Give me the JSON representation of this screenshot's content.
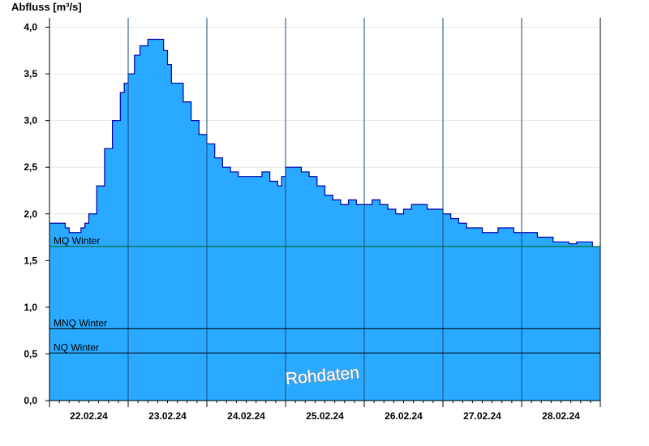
{
  "chart_data": {
    "type": "area",
    "ylabel": "Abfluss [m³/s]",
    "ylim": [
      0,
      4.1
    ],
    "yticks": [
      0.0,
      0.5,
      1.0,
      1.5,
      2.0,
      2.5,
      3.0,
      3.5,
      4.0
    ],
    "ytick_labels": [
      "0,0",
      "0,5",
      "1,0",
      "1,5",
      "2,0",
      "2,5",
      "3,0",
      "3,5",
      "4,0"
    ],
    "xlim": [
      0,
      7
    ],
    "x_unit": "days from 22.02.24 00:00",
    "x_labels": [
      "22.02.24",
      "23.02.24",
      "24.02.24",
      "25.02.24",
      "26.02.24",
      "27.02.24",
      "28.02.24"
    ],
    "grid": true,
    "fill_color": "#29a9ff",
    "line_color": "#0000aa",
    "series": [
      {
        "name": "Abfluss",
        "x": [
          0.0,
          0.1,
          0.2,
          0.25,
          0.4,
          0.45,
          0.5,
          0.6,
          0.7,
          0.8,
          0.9,
          0.95,
          1.0,
          1.08,
          1.15,
          1.25,
          1.35,
          1.45,
          1.5,
          1.55,
          1.7,
          1.8,
          1.9,
          2.0,
          2.1,
          2.2,
          2.3,
          2.4,
          2.5,
          2.6,
          2.7,
          2.8,
          2.9,
          2.95,
          3.0,
          3.1,
          3.2,
          3.3,
          3.4,
          3.5,
          3.6,
          3.7,
          3.8,
          3.9,
          4.0,
          4.1,
          4.2,
          4.3,
          4.4,
          4.5,
          4.6,
          4.7,
          4.8,
          4.9,
          5.0,
          5.1,
          5.2,
          5.3,
          5.4,
          5.5,
          5.6,
          5.7,
          5.8,
          5.9,
          6.0,
          6.1,
          6.2,
          6.3,
          6.4,
          6.5,
          6.6,
          6.7,
          6.8,
          6.9,
          7.0
        ],
        "y": [
          1.9,
          1.9,
          1.85,
          1.8,
          1.85,
          1.9,
          2.0,
          2.3,
          2.7,
          3.0,
          3.3,
          3.4,
          3.5,
          3.7,
          3.8,
          3.87,
          3.87,
          3.75,
          3.6,
          3.4,
          3.2,
          3.0,
          2.85,
          2.75,
          2.6,
          2.5,
          2.45,
          2.4,
          2.4,
          2.4,
          2.45,
          2.35,
          2.3,
          2.4,
          2.5,
          2.5,
          2.45,
          2.4,
          2.3,
          2.2,
          2.15,
          2.1,
          2.15,
          2.1,
          2.1,
          2.15,
          2.1,
          2.05,
          2.0,
          2.05,
          2.1,
          2.1,
          2.05,
          2.05,
          2.0,
          1.95,
          1.9,
          1.85,
          1.85,
          1.8,
          1.8,
          1.85,
          1.85,
          1.8,
          1.8,
          1.8,
          1.75,
          1.75,
          1.7,
          1.7,
          1.68,
          1.7,
          1.7,
          1.65,
          1.65
        ]
      }
    ],
    "reference_lines": [
      {
        "label": "MQ Winter",
        "value": 1.65,
        "color": "#006400"
      },
      {
        "label": "MNQ Winter",
        "value": 0.77,
        "color": "#000000"
      },
      {
        "label": "NQ Winter",
        "value": 0.51,
        "color": "#000000"
      }
    ],
    "watermark": "Rohdaten"
  }
}
